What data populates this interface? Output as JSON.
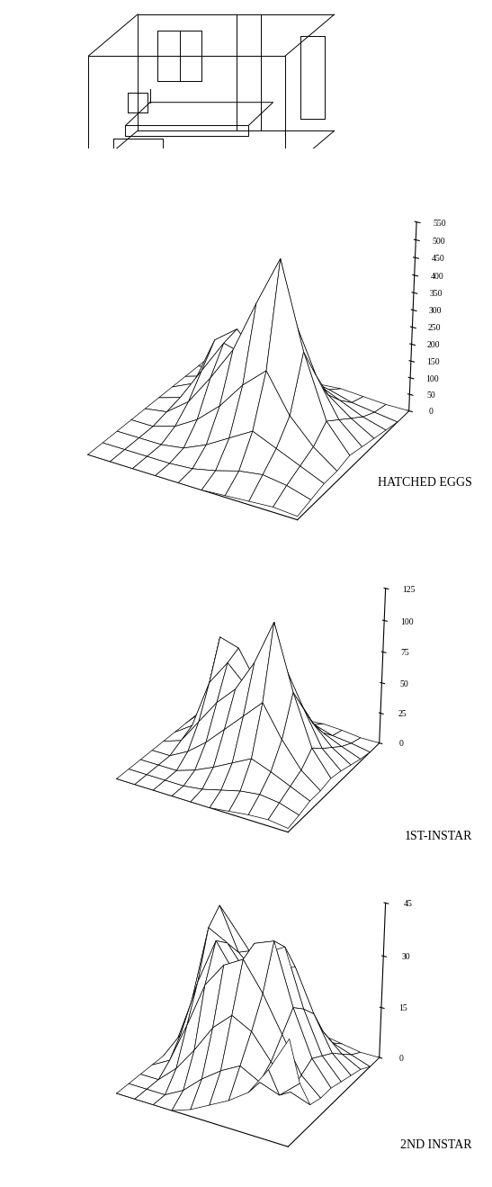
{
  "chart_data": [
    {
      "type": "surface",
      "title": "HATCHED EGGS",
      "grid": false,
      "zlim": [
        0,
        550
      ],
      "zticks": [
        0,
        50,
        100,
        150,
        200,
        250,
        300,
        350,
        400,
        450,
        500,
        550
      ],
      "values": [
        [
          0,
          0,
          0,
          0,
          0,
          0,
          5,
          10,
          15,
          10
        ],
        [
          0,
          0,
          0,
          0,
          5,
          20,
          40,
          50,
          40,
          20
        ],
        [
          0,
          0,
          0,
          10,
          40,
          80,
          120,
          90,
          60,
          30
        ],
        [
          0,
          0,
          20,
          60,
          120,
          200,
          260,
          150,
          80,
          30
        ],
        [
          0,
          10,
          60,
          150,
          250,
          400,
          540,
          300,
          120,
          40
        ],
        [
          0,
          20,
          120,
          220,
          200,
          280,
          350,
          200,
          90,
          30
        ],
        [
          0,
          30,
          180,
          230,
          160,
          150,
          180,
          110,
          60,
          20
        ],
        [
          0,
          20,
          120,
          140,
          90,
          80,
          90,
          60,
          30,
          10
        ],
        [
          0,
          10,
          50,
          60,
          40,
          30,
          40,
          20,
          10,
          0
        ],
        [
          0,
          0,
          10,
          15,
          10,
          5,
          10,
          5,
          0,
          0
        ]
      ]
    },
    {
      "type": "surface",
      "title": "1ST-INSTAR",
      "grid": false,
      "zlim": [
        0,
        125
      ],
      "zticks": [
        0,
        25,
        50,
        75,
        100,
        125
      ],
      "values": [
        [
          0,
          0,
          0,
          0,
          0,
          0,
          2,
          4,
          5,
          3
        ],
        [
          0,
          0,
          0,
          0,
          2,
          6,
          10,
          12,
          10,
          5
        ],
        [
          0,
          0,
          0,
          5,
          12,
          20,
          28,
          22,
          15,
          8
        ],
        [
          0,
          0,
          8,
          20,
          35,
          50,
          65,
          40,
          20,
          8
        ],
        [
          0,
          5,
          25,
          45,
          60,
          85,
          120,
          70,
          30,
          10
        ],
        [
          0,
          10,
          50,
          70,
          55,
          65,
          80,
          50,
          22,
          8
        ],
        [
          0,
          15,
          80,
          75,
          50,
          45,
          50,
          30,
          15,
          5
        ],
        [
          0,
          10,
          50,
          45,
          30,
          25,
          25,
          15,
          8,
          2
        ],
        [
          0,
          5,
          20,
          20,
          12,
          10,
          10,
          5,
          3,
          0
        ],
        [
          0,
          0,
          5,
          5,
          3,
          2,
          3,
          2,
          0,
          0
        ]
      ]
    },
    {
      "type": "surface",
      "title": "2ND INSTAR",
      "grid": false,
      "zlim": [
        0,
        45
      ],
      "zticks": [
        0,
        15,
        30,
        45
      ],
      "values": [
        [
          0,
          0,
          0,
          0,
          2,
          5,
          8,
          12,
          20,
          30
        ],
        [
          0,
          0,
          0,
          3,
          8,
          12,
          15,
          12,
          10,
          15
        ],
        [
          0,
          0,
          5,
          12,
          20,
          25,
          22,
          15,
          8,
          6
        ],
        [
          0,
          3,
          15,
          28,
          35,
          38,
          30,
          20,
          10,
          5
        ],
        [
          0,
          8,
          25,
          38,
          30,
          40,
          42,
          25,
          12,
          5
        ],
        [
          0,
          15,
          38,
          35,
          28,
          35,
          38,
          22,
          10,
          4
        ],
        [
          0,
          22,
          42,
          30,
          25,
          28,
          30,
          18,
          8,
          3
        ],
        [
          0,
          18,
          35,
          28,
          20,
          20,
          18,
          10,
          5,
          2
        ],
        [
          0,
          8,
          15,
          12,
          8,
          8,
          6,
          4,
          2,
          0
        ],
        [
          0,
          0,
          5,
          4,
          3,
          2,
          2,
          1,
          0,
          0
        ]
      ]
    }
  ]
}
